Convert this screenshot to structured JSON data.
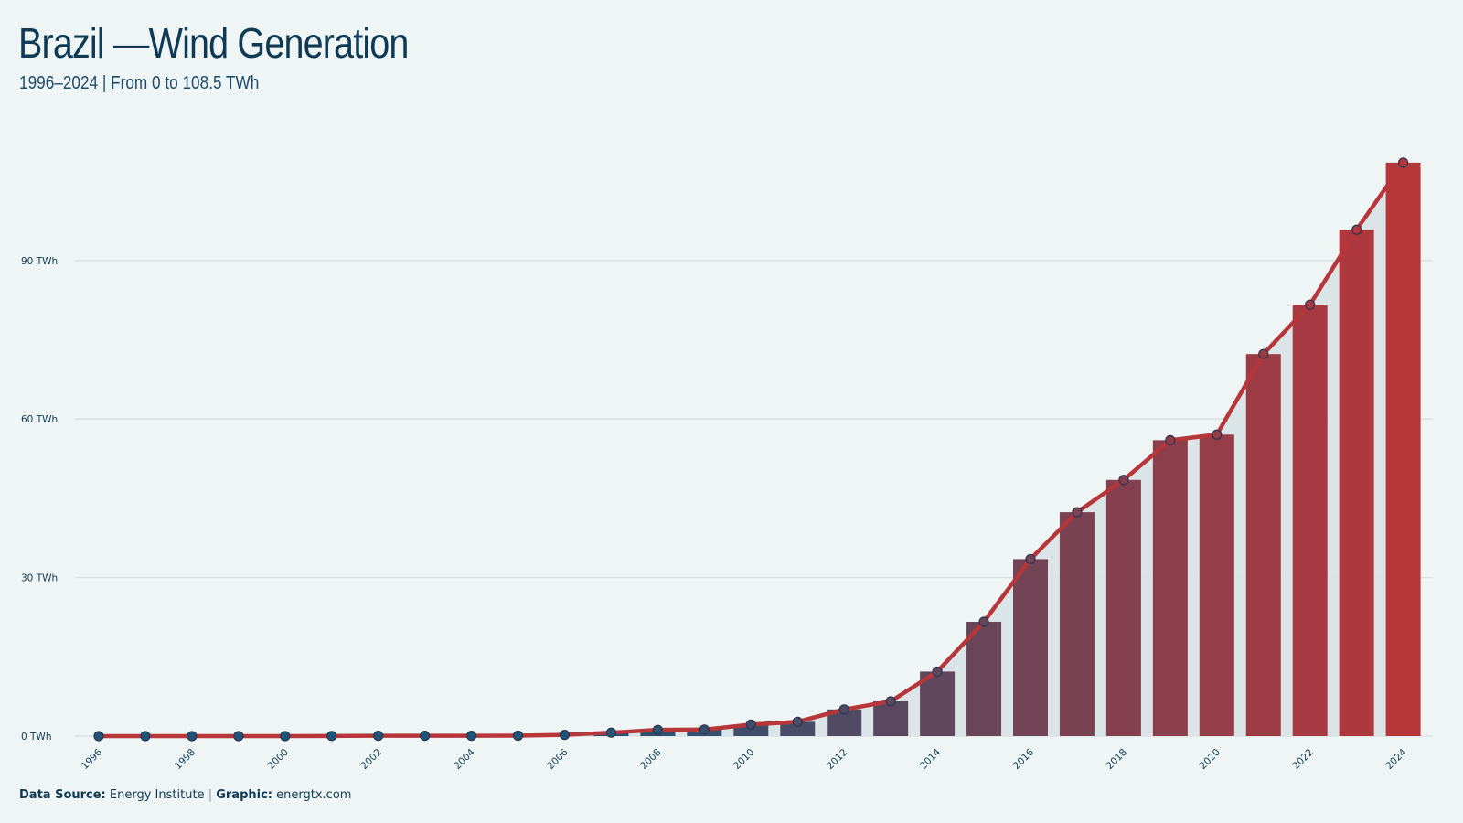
{
  "header": {
    "title": "Brazil —Wind Generation",
    "subtitle": "1996–2024 | From 0 to 108.5 TWh"
  },
  "footer": {
    "source_label": "Data Source:",
    "source_value": "Energy Institute",
    "separator": "|",
    "graphic_label": "Graphic:",
    "graphic_value": "energtx.com"
  },
  "colors": {
    "background": "#eff5f5",
    "text": "#0e3a55",
    "bar_start": "#1d5478",
    "bar_end": "#b7363a",
    "line": "#b7363a",
    "area_fill": "#d8e3e5",
    "grid": "#d6dfe2"
  },
  "chart_data": {
    "type": "bar",
    "title": "Brazil —Wind Generation",
    "subtitle": "1996–2024 | From 0 to 108.5 TWh",
    "xlabel": "",
    "ylabel": "",
    "unit": "TWh",
    "ylim": [
      0,
      110
    ],
    "yticks": [
      0,
      30,
      60,
      90
    ],
    "ytick_labels": [
      "0 TWh",
      "30 TWh",
      "60 TWh",
      "90 TWh"
    ],
    "grid": true,
    "legend": "none",
    "categories": [
      "1996",
      "1997",
      "1998",
      "1999",
      "2000",
      "2001",
      "2002",
      "2003",
      "2004",
      "2005",
      "2006",
      "2007",
      "2008",
      "2009",
      "2010",
      "2011",
      "2012",
      "2013",
      "2014",
      "2015",
      "2016",
      "2017",
      "2018",
      "2019",
      "2020",
      "2021",
      "2022",
      "2023",
      "2024"
    ],
    "xtick_labels": [
      "1996",
      "1998",
      "2000",
      "2002",
      "2004",
      "2006",
      "2008",
      "2010",
      "2012",
      "2014",
      "2016",
      "2018",
      "2020",
      "2022",
      "2024"
    ],
    "values": [
      0.0,
      0.0,
      0.0,
      0.0,
      0.0,
      0.03,
      0.06,
      0.06,
      0.06,
      0.09,
      0.24,
      0.66,
      1.18,
      1.24,
      2.18,
      2.71,
      5.05,
      6.58,
      12.21,
      21.63,
      33.49,
      42.37,
      48.48,
      55.99,
      57.05,
      72.29,
      81.63,
      95.8,
      108.5
    ],
    "series": [
      {
        "type": "bar",
        "values": [
          0.0,
          0.0,
          0.0,
          0.0,
          0.0,
          0.03,
          0.06,
          0.06,
          0.06,
          0.09,
          0.24,
          0.66,
          1.18,
          1.24,
          2.18,
          2.71,
          5.05,
          6.58,
          12.21,
          21.63,
          33.49,
          42.37,
          48.48,
          55.99,
          57.05,
          72.29,
          81.63,
          95.8,
          108.5
        ]
      },
      {
        "type": "line",
        "values": [
          0.0,
          0.0,
          0.0,
          0.0,
          0.0,
          0.03,
          0.06,
          0.06,
          0.06,
          0.09,
          0.24,
          0.66,
          1.18,
          1.24,
          2.18,
          2.71,
          5.05,
          6.58,
          12.21,
          21.63,
          33.49,
          42.37,
          48.48,
          55.99,
          57.05,
          72.29,
          81.63,
          95.8,
          108.5
        ]
      }
    ]
  }
}
